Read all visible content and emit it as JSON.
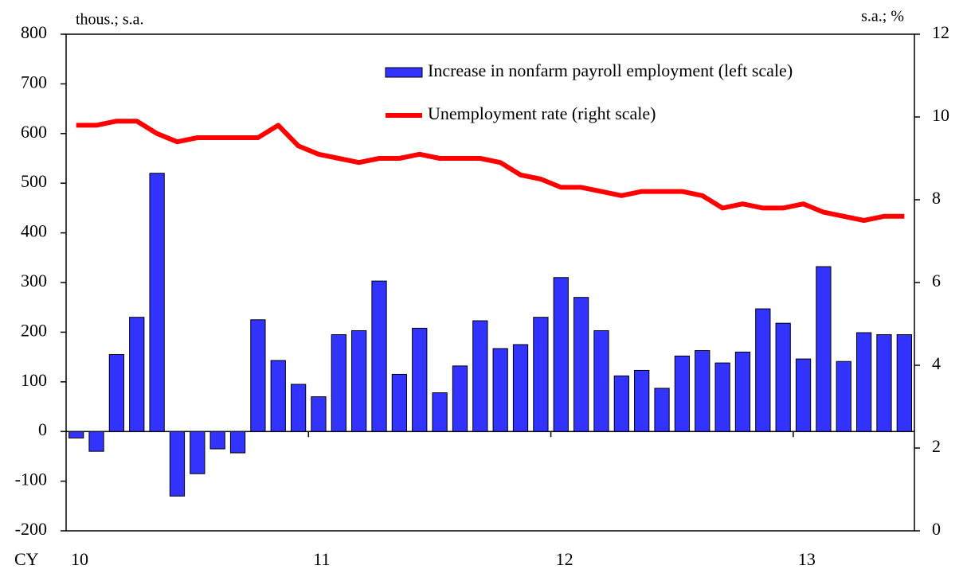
{
  "chart_data": {
    "type": "bar-line",
    "ylabel": "thous.; s.a.",
    "y2label": "s.a.; %",
    "xlabel": "CY",
    "categories": [
      "10",
      null,
      null,
      null,
      null,
      null,
      null,
      null,
      null,
      null,
      null,
      null,
      "11",
      null,
      null,
      null,
      null,
      null,
      null,
      null,
      null,
      null,
      null,
      null,
      "12",
      null,
      null,
      null,
      null,
      null,
      null,
      null,
      null,
      null,
      null,
      null,
      "13",
      null,
      null,
      null,
      null,
      null
    ],
    "series": [
      {
        "name": "Increase in nonfarm payroll employment (left scale)",
        "type": "bar",
        "color": "#3333ff",
        "values": [
          -13,
          -40,
          155,
          230,
          520,
          -130,
          -85,
          -35,
          -43,
          225,
          143,
          95,
          70,
          195,
          203,
          303,
          115,
          208,
          78,
          132,
          223,
          167,
          175,
          230,
          310,
          270,
          203,
          112,
          123,
          87,
          152,
          163,
          138,
          160,
          247,
          218,
          146,
          332,
          141,
          199,
          195,
          195
        ]
      },
      {
        "name": "Unemployment rate (right scale)",
        "type": "line",
        "axis": "y2",
        "color": "#ff0000",
        "values": [
          9.8,
          9.8,
          9.9,
          9.9,
          9.6,
          9.4,
          9.5,
          9.5,
          9.5,
          9.5,
          9.8,
          9.3,
          9.1,
          9.0,
          8.9,
          9.0,
          9.0,
          9.1,
          9.0,
          9.0,
          9.0,
          8.9,
          8.6,
          8.5,
          8.3,
          8.3,
          8.2,
          8.1,
          8.2,
          8.2,
          8.2,
          8.1,
          7.8,
          7.9,
          7.8,
          7.8,
          7.9,
          7.7,
          7.6,
          7.5,
          7.6,
          7.6
        ]
      }
    ],
    "ylim": [
      -200,
      800
    ],
    "yticks": [
      -200,
      -100,
      0,
      100,
      200,
      300,
      400,
      500,
      600,
      700,
      800
    ],
    "y2lim": [
      0,
      12
    ],
    "y2ticks": [
      0,
      2,
      4,
      6,
      8,
      10,
      12
    ],
    "grid": false
  }
}
